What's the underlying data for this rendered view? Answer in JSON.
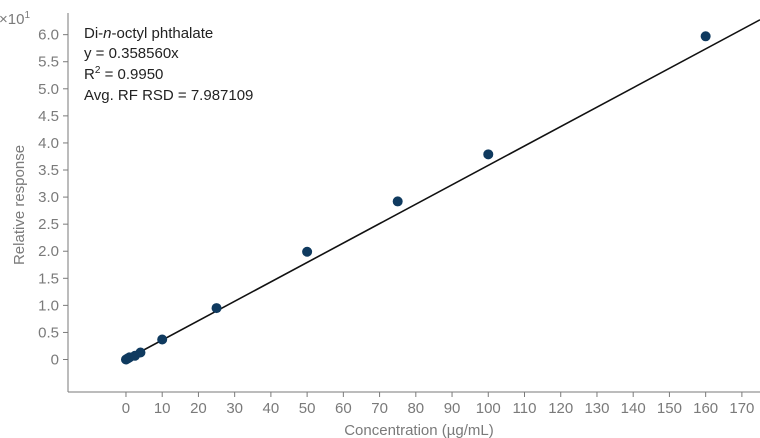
{
  "chart_data": {
    "type": "scatter",
    "xlabel": "Concentration (µg/mL)",
    "ylabel": "Relative response",
    "y_multiplier": "×10",
    "y_multiplier_exp": "1",
    "xlim": [
      -16,
      175
    ],
    "ylim": [
      -0.6,
      6.4
    ],
    "x_ticks": [
      0,
      10,
      20,
      30,
      40,
      50,
      60,
      70,
      80,
      90,
      100,
      110,
      120,
      130,
      140,
      150,
      160,
      170
    ],
    "y_ticks": [
      0,
      0.5,
      1.0,
      1.5,
      2.0,
      2.5,
      3.0,
      3.5,
      4.0,
      4.5,
      5.0,
      5.5,
      6.0
    ],
    "y_tick_labels": [
      "0",
      "0.5",
      "1.0",
      "1.5",
      "2.0",
      "2.5",
      "3.0",
      "3.5",
      "4.0",
      "4.5",
      "5.0",
      "5.5",
      "6.0"
    ],
    "grid": false,
    "points": [
      {
        "x": 0.0,
        "y": 0.0
      },
      {
        "x": 0.5,
        "y": 0.02
      },
      {
        "x": 1.0,
        "y": 0.04
      },
      {
        "x": 2.5,
        "y": 0.07
      },
      {
        "x": 4.0,
        "y": 0.13
      },
      {
        "x": 10.0,
        "y": 0.37
      },
      {
        "x": 25.0,
        "y": 0.95
      },
      {
        "x": 50.0,
        "y": 1.99
      },
      {
        "x": 75.0,
        "y": 2.92
      },
      {
        "x": 100.0,
        "y": 3.79
      },
      {
        "x": 160.0,
        "y": 5.97
      }
    ],
    "fit": {
      "slope": 0.035856,
      "intercept": 0
    },
    "point_color": "#0f3a5f",
    "line_color": "#111111",
    "annotation": {
      "compound_prefix": "Di-",
      "compound_italic": "n",
      "compound_suffix": "-octyl phthalate",
      "equation": "y = 0.358560x",
      "r2_prefix": "R",
      "r2_sup": "2",
      "r2_value": " = 0.9950",
      "rf": "Avg. RF RSD = 7.987109"
    }
  }
}
